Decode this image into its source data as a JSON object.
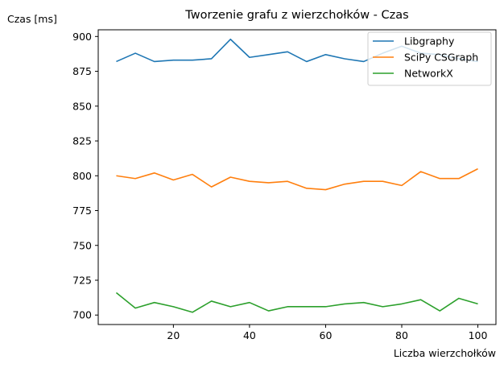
{
  "chart_data": {
    "type": "line",
    "title": "Tworzenie grafu z wierzchołków - Czas",
    "xlabel": "Liczba wierzchołków",
    "ylabel": "Czas [ms]",
    "xlim": [
      0.25,
      104.75
    ],
    "ylim": [
      693.2,
      904.8
    ],
    "xticks": [
      20,
      40,
      60,
      80,
      100
    ],
    "yticks": [
      700,
      725,
      750,
      775,
      800,
      825,
      850,
      875,
      900
    ],
    "grid": false,
    "legend_position": "top-right",
    "x": [
      5,
      10,
      15,
      20,
      25,
      30,
      35,
      40,
      45,
      50,
      55,
      60,
      65,
      70,
      75,
      80,
      85,
      90,
      95,
      100
    ],
    "series": [
      {
        "name": "Libgraphy",
        "color": "#1f77b4",
        "values": [
          882,
          888,
          882,
          883,
          883,
          884,
          898,
          885,
          887,
          889,
          882,
          887,
          884,
          882,
          888,
          893,
          888,
          887,
          884,
          882
        ]
      },
      {
        "name": "SciPy CSGraph",
        "color": "#ff7f0e",
        "values": [
          800,
          798,
          802,
          797,
          801,
          792,
          799,
          796,
          795,
          796,
          791,
          790,
          794,
          796,
          796,
          793,
          803,
          798,
          798,
          805
        ]
      },
      {
        "name": "NetworkX",
        "color": "#2ca02c",
        "values": [
          716,
          705,
          709,
          706,
          702,
          710,
          706,
          709,
          703,
          706,
          706,
          706,
          708,
          709,
          706,
          708,
          711,
          703,
          712,
          708
        ]
      }
    ]
  }
}
